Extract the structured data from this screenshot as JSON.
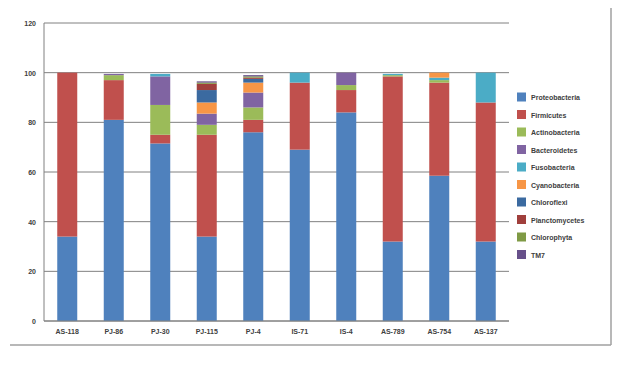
{
  "chart_data": {
    "type": "bar",
    "stacked": true,
    "grid": true,
    "legend": "right",
    "categories": [
      "AS-118",
      "PJ-86",
      "PJ-30",
      "PJ-115",
      "PJ-4",
      "IS-71",
      "IS-4",
      "AS-789",
      "AS-754",
      "AS-137"
    ],
    "ylim": [
      0,
      120
    ],
    "yticks": [
      0,
      20,
      40,
      60,
      80,
      100,
      120
    ],
    "series": [
      {
        "name": "Proteobacteria",
        "color": "#4f81bd",
        "values": [
          34,
          81,
          71.5,
          34,
          76,
          69,
          84,
          32,
          58.5,
          32
        ]
      },
      {
        "name": "Firmicutes",
        "color": "#c0504d",
        "values": [
          66,
          16,
          3.5,
          41,
          5,
          27,
          9,
          66.5,
          37.5,
          56
        ]
      },
      {
        "name": "Actinobacteria",
        "color": "#9bbb59",
        "values": [
          0,
          2,
          12,
          4,
          5,
          0,
          2,
          0.5,
          1,
          0
        ]
      },
      {
        "name": "Bacteroidetes",
        "color": "#8064a2",
        "values": [
          0,
          0.5,
          11.5,
          4.5,
          6,
          0,
          5,
          0,
          0,
          0
        ]
      },
      {
        "name": "Fusobacteria",
        "color": "#4bacc6",
        "values": [
          0,
          0,
          1,
          0,
          0,
          4,
          0,
          0.5,
          1,
          12
        ]
      },
      {
        "name": "Cyanobacteria",
        "color": "#f79646",
        "values": [
          0,
          0,
          0,
          4.5,
          4,
          0,
          0,
          0,
          2,
          0
        ]
      },
      {
        "name": "Chloroflexi",
        "color": "#3b6aa0",
        "values": [
          0,
          0,
          0,
          5,
          1.5,
          0,
          0,
          0,
          0,
          0
        ]
      },
      {
        "name": "Planctomycetes",
        "color": "#a03f3c",
        "values": [
          0,
          0,
          0,
          2.5,
          0.5,
          0,
          0,
          0,
          0,
          0
        ]
      },
      {
        "name": "Chlorophyta",
        "color": "#7f9a45",
        "values": [
          0,
          0,
          0,
          0.5,
          0.5,
          0,
          0,
          0,
          0,
          0
        ]
      },
      {
        "name": "TM7",
        "color": "#67508a",
        "values": [
          0,
          0,
          0,
          0.5,
          0.5,
          0,
          0,
          0,
          0,
          0
        ]
      }
    ]
  }
}
